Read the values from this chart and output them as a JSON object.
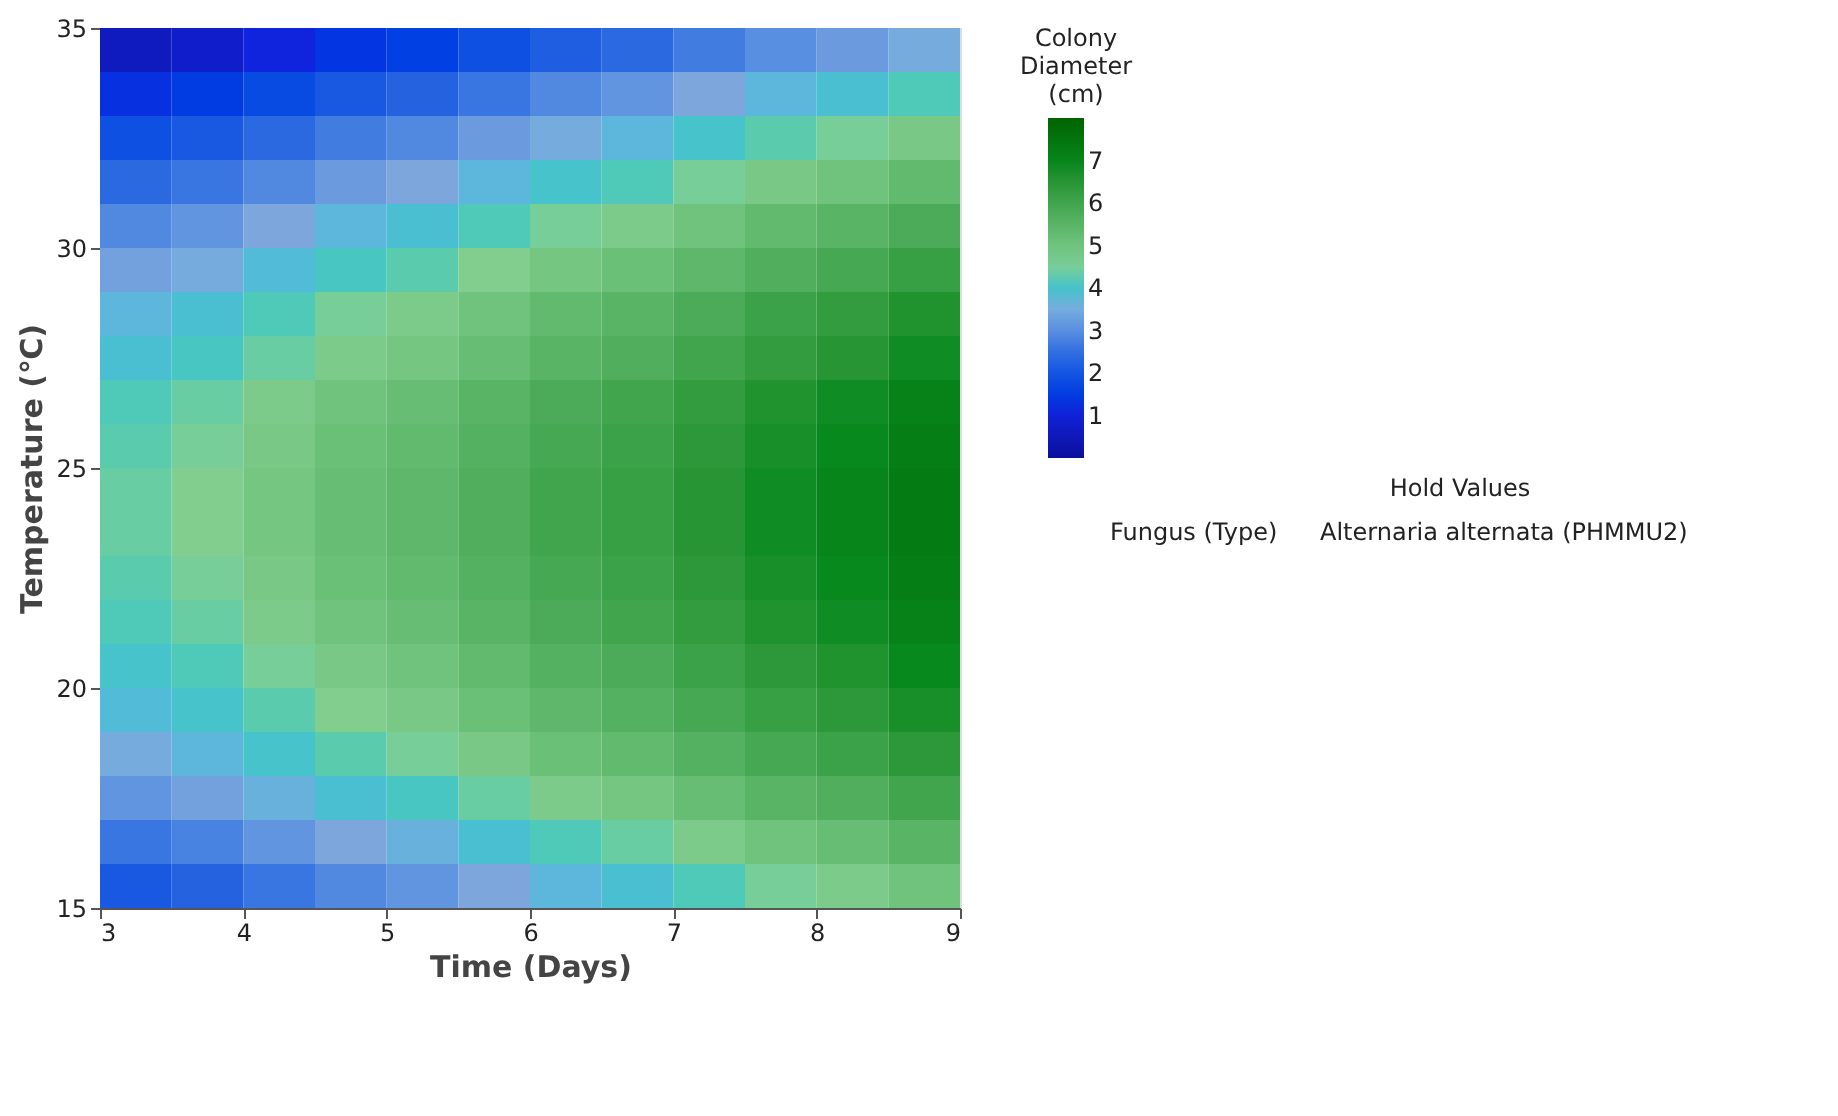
{
  "chart_data": {
    "type": "heatmap",
    "xlabel": "Time (Days)",
    "ylabel": "Temperature (℃)",
    "legend_title": "Colony Diameter (cm)",
    "x": [
      3.25,
      3.75,
      4.25,
      4.75,
      5.25,
      5.75,
      6.25,
      6.75,
      7.25,
      7.75,
      8.25,
      8.75
    ],
    "y": [
      34.5,
      33.5,
      32.5,
      31.5,
      30.5,
      29.5,
      28.5,
      27.5,
      26.5,
      25.5,
      24.5,
      23.5,
      22.5,
      21.5,
      20.5,
      19.5,
      18.5,
      17.5,
      16.5,
      15.5
    ],
    "cells": [
      [
        0.6,
        0.8,
        1.1,
        1.4,
        1.6,
        1.9,
        2.2,
        2.4,
        2.7,
        3.0,
        3.2,
        3.5
      ],
      [
        1.3,
        1.5,
        1.8,
        2.1,
        2.3,
        2.6,
        2.9,
        3.1,
        3.4,
        3.7,
        3.9,
        4.2
      ],
      [
        1.9,
        2.1,
        2.4,
        2.7,
        2.9,
        3.2,
        3.5,
        3.7,
        4.0,
        4.3,
        4.5,
        4.8
      ],
      [
        2.4,
        2.6,
        2.9,
        3.2,
        3.4,
        3.7,
        4.0,
        4.2,
        4.5,
        4.8,
        5.0,
        5.3
      ],
      [
        2.9,
        3.1,
        3.4,
        3.7,
        3.9,
        4.2,
        4.5,
        4.7,
        5.0,
        5.3,
        5.5,
        5.8
      ],
      [
        3.3,
        3.5,
        3.8,
        4.1,
        4.3,
        4.6,
        4.9,
        5.1,
        5.4,
        5.7,
        5.9,
        6.2
      ],
      [
        3.7,
        3.9,
        4.2,
        4.5,
        4.7,
        5.0,
        5.3,
        5.5,
        5.8,
        6.1,
        6.3,
        6.6
      ],
      [
        3.9,
        4.1,
        4.4,
        4.7,
        4.9,
        5.2,
        5.5,
        5.7,
        6.0,
        6.3,
        6.5,
        6.8
      ],
      [
        4.2,
        4.4,
        4.7,
        5.0,
        5.2,
        5.5,
        5.8,
        6.0,
        6.3,
        6.6,
        6.8,
        7.1
      ],
      [
        4.3,
        4.5,
        4.8,
        5.1,
        5.3,
        5.6,
        5.9,
        6.1,
        6.4,
        6.7,
        6.9,
        7.2
      ],
      [
        4.4,
        4.6,
        4.9,
        5.2,
        5.4,
        5.7,
        6.0,
        6.2,
        6.5,
        6.8,
        7.0,
        7.3
      ],
      [
        4.4,
        4.6,
        4.9,
        5.2,
        5.4,
        5.7,
        6.0,
        6.2,
        6.5,
        6.8,
        7.0,
        7.3
      ],
      [
        4.3,
        4.5,
        4.8,
        5.1,
        5.3,
        5.6,
        5.9,
        6.1,
        6.4,
        6.7,
        6.9,
        7.2
      ],
      [
        4.2,
        4.4,
        4.7,
        5.0,
        5.2,
        5.5,
        5.8,
        6.0,
        6.3,
        6.6,
        6.8,
        7.1
      ],
      [
        4.0,
        4.2,
        4.5,
        4.8,
        5.0,
        5.3,
        5.6,
        5.8,
        6.1,
        6.4,
        6.6,
        6.9
      ],
      [
        3.8,
        4.0,
        4.3,
        4.6,
        4.8,
        5.1,
        5.4,
        5.6,
        5.9,
        6.2,
        6.4,
        6.7
      ],
      [
        3.5,
        3.7,
        4.0,
        4.3,
        4.5,
        4.8,
        5.1,
        5.3,
        5.6,
        5.9,
        6.1,
        6.4
      ],
      [
        3.1,
        3.3,
        3.6,
        3.9,
        4.1,
        4.4,
        4.7,
        4.9,
        5.2,
        5.5,
        5.7,
        6.0
      ],
      [
        2.6,
        2.8,
        3.1,
        3.4,
        3.6,
        3.9,
        4.2,
        4.4,
        4.7,
        5.0,
        5.2,
        5.5
      ],
      [
        2.1,
        2.3,
        2.6,
        2.9,
        3.1,
        3.4,
        3.7,
        3.9,
        4.2,
        4.5,
        4.7,
        5.0
      ]
    ],
    "clim": [
      0,
      8
    ],
    "cticks": [
      1,
      2,
      3,
      4,
      5,
      6,
      7
    ],
    "colors": [
      "#0b0f9c",
      "#1024e0",
      "#2461e0",
      "#7fa8dc",
      "#83cf90",
      "#4fae5c",
      "#088a1f",
      "#006400"
    ],
    "xlim": [
      3,
      9
    ],
    "xticks": [
      3,
      4,
      5,
      6,
      7,
      8,
      9
    ],
    "ylim": [
      15,
      35
    ],
    "yticks": [
      15,
      20,
      25,
      30,
      35
    ],
    "grid": false,
    "annotations": [
      "Hold Values",
      "Fungus (Type)",
      "Alternaria alternata (PHMMU2)"
    ]
  }
}
